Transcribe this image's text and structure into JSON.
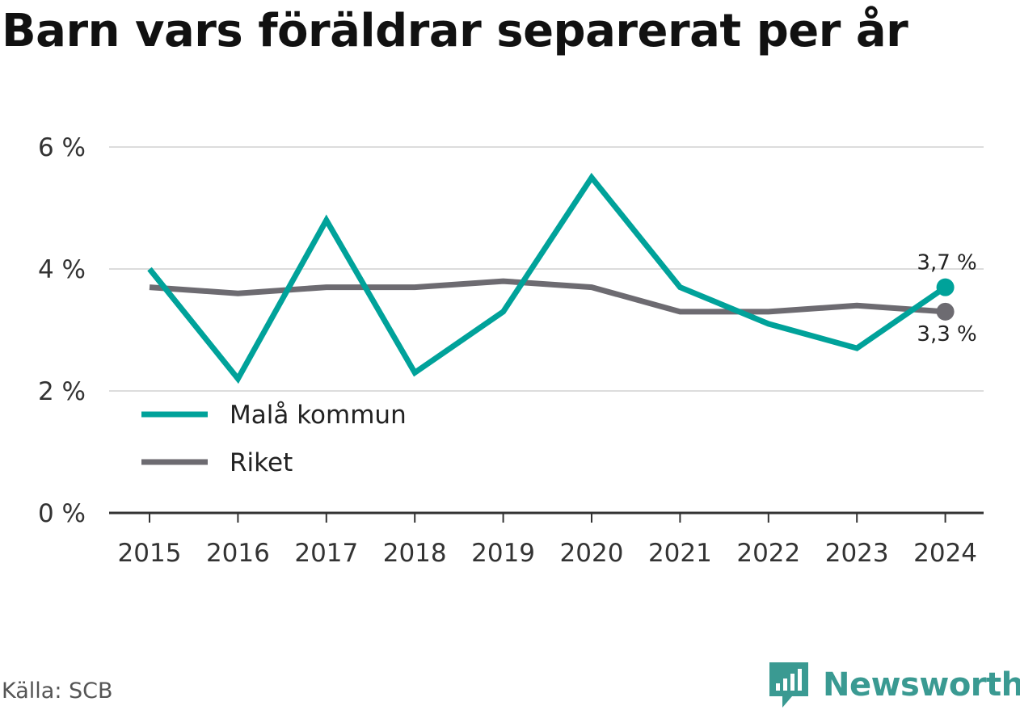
{
  "title": "Barn vars föräldrar separerat per år",
  "source": "Källa: SCB",
  "brand": {
    "name": "Newsworthy",
    "color": "#3a9a92"
  },
  "chart_data": {
    "type": "line",
    "title": "Barn vars föräldrar separerat per år",
    "xlabel": "",
    "ylabel": "",
    "x": [
      "2015",
      "2016",
      "2017",
      "2018",
      "2019",
      "2020",
      "2021",
      "2022",
      "2023",
      "2024"
    ],
    "ylim": [
      0,
      6
    ],
    "yticks": [
      0,
      2,
      4,
      6
    ],
    "ytick_labels": [
      "0 %",
      "2 %",
      "4 %",
      "6 %"
    ],
    "grid": true,
    "legend_position": "bottom-left",
    "series": [
      {
        "name": "Malå kommun",
        "color": "#00a29a",
        "values": [
          4.0,
          2.2,
          4.8,
          2.3,
          3.3,
          5.5,
          3.7,
          3.1,
          2.7,
          3.7
        ],
        "end_label": "3,7 %"
      },
      {
        "name": "Riket",
        "color": "#6d6b71",
        "values": [
          3.7,
          3.6,
          3.7,
          3.7,
          3.8,
          3.7,
          3.3,
          3.3,
          3.4,
          3.3
        ],
        "end_label": "3,3 %"
      }
    ]
  }
}
